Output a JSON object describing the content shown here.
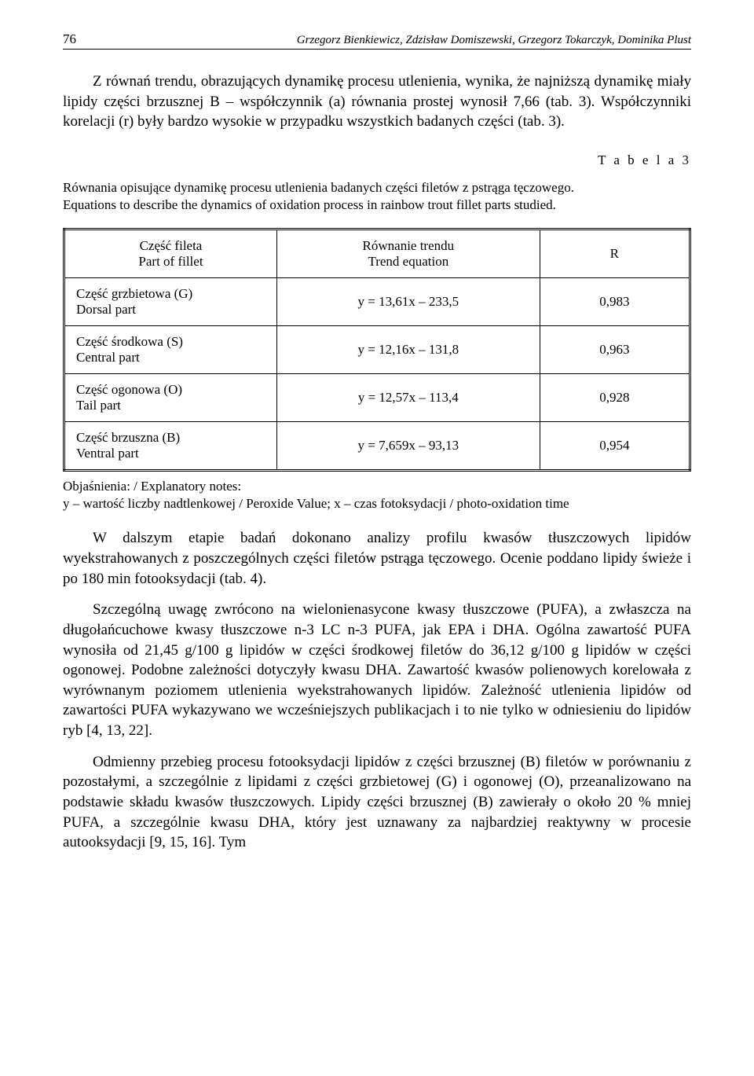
{
  "page_number": "76",
  "running_head": "Grzegorz Bienkiewicz, Zdzisław Domiszewski, Grzegorz Tokarczyk, Dominika Plust",
  "para1": "Z równań trendu, obrazujących dynamikę procesu utlenienia, wynika, że najniższą dynamikę miały lipidy części brzusznej B – współczynnik (a) równania prostej wynosił 7,66 (tab. 3). Współczynniki korelacji (r) były bardzo wysokie w przypadku wszystkich badanych części (tab. 3).",
  "table_label": "T a b e l a   3",
  "table_caption_pl": "Równania opisujące dynamikę procesu utlenienia badanych części filetów z pstrąga tęczowego.",
  "table_caption_en": "Equations to describe the dynamics of oxidation process in rainbow trout fillet parts studied.",
  "table": {
    "columns": [
      {
        "pl": "Część fileta",
        "en": "Part of fillet"
      },
      {
        "pl": "Równanie trendu",
        "en": "Trend equation"
      },
      {
        "label": "R"
      }
    ],
    "rows": [
      {
        "part_pl": "Część grzbietowa (G)",
        "part_en": "Dorsal part",
        "eq": "y = 13,61x – 233,5",
        "r": "0,983"
      },
      {
        "part_pl": "Część środkowa (S)",
        "part_en": "Central part",
        "eq": "y = 12,16x – 131,8",
        "r": "0,963"
      },
      {
        "part_pl": "Część ogonowa (O)",
        "part_en": "Tail part",
        "eq": "y = 12,57x – 113,4",
        "r": "0,928"
      },
      {
        "part_pl": "Część brzuszna (B)",
        "part_en": "Ventral part",
        "eq": "y = 7,659x – 93,13",
        "r": "0,954"
      }
    ],
    "col_widths": [
      "34%",
      "42%",
      "24%"
    ]
  },
  "notes_line1": "Objaśnienia: / Explanatory notes:",
  "notes_line2": "y – wartość liczby nadtlenkowej / Peroxide Value; x – czas fotoksydacji / photo-oxidation time",
  "para2": "W dalszym etapie badań dokonano analizy profilu kwasów tłuszczowych lipidów wyekstrahowanych z poszczególnych części filetów pstrąga tęczowego. Ocenie poddano lipidy świeże i po 180 min fotooksydacji (tab. 4).",
  "para3": "Szczególną uwagę zwrócono na wielonienasycone kwasy tłuszczowe (PUFA), a zwłaszcza na długołańcuchowe kwasy tłuszczowe n-3 LC n-3 PUFA, jak EPA i DHA. Ogólna zawartość PUFA wynosiła od 21,45 g/100 g lipidów w części środkowej filetów do 36,12 g/100 g lipidów w części ogonowej. Podobne zależności dotyczyły kwasu DHA. Zawartość kwasów polienowych korelowała z wyrównanym poziomem utlenienia wyekstrahowanych lipidów. Zależność utlenienia lipidów od zawartości PUFA wykazywano we wcześniejszych publikacjach i to nie tylko w odniesieniu do lipidów ryb [4, 13, 22].",
  "para4": "Odmienny przebieg procesu fotooksydacji lipidów z części brzusznej (B) filetów w porównaniu z pozostałymi, a szczególnie z lipidami z części grzbietowej (G) i ogonowej (O), przeanalizowano na podstawie składu kwasów tłuszczowych. Lipidy części brzusznej (B) zawierały o około 20 % mniej PUFA, a szczególnie kwasu DHA, który jest uznawany za najbardziej reaktywny w procesie autooksydacji [9, 15, 16]. Tym"
}
